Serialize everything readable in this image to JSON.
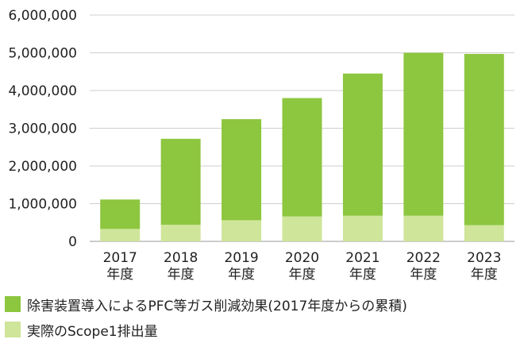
{
  "chart_data": {
    "type": "bar",
    "stacked": true,
    "categories": [
      [
        "2017",
        "年度"
      ],
      [
        "2018",
        "年度"
      ],
      [
        "2019",
        "年度"
      ],
      [
        "2020",
        "年度"
      ],
      [
        "2021",
        "年度"
      ],
      [
        "2022",
        "年度"
      ],
      [
        "2023",
        "年度"
      ]
    ],
    "series": [
      {
        "name": "実際のScope1排出量",
        "color": "#cfe59a",
        "values": [
          330000,
          440000,
          560000,
          660000,
          680000,
          680000,
          430000
        ]
      },
      {
        "name": "除害装置導入によるPFC等ガス削減効果(2017年度からの累積)",
        "color": "#8dc63f",
        "values": [
          780000,
          2280000,
          2680000,
          3140000,
          3770000,
          4320000,
          4540000
        ]
      }
    ],
    "ylim": [
      0,
      6000000
    ],
    "yticks": [
      "0",
      "1,000,000",
      "2,000,000",
      "3,000,000",
      "4,000,000",
      "5,000,000",
      "6,000,000"
    ],
    "grid": true,
    "legend_position": "bottom"
  }
}
